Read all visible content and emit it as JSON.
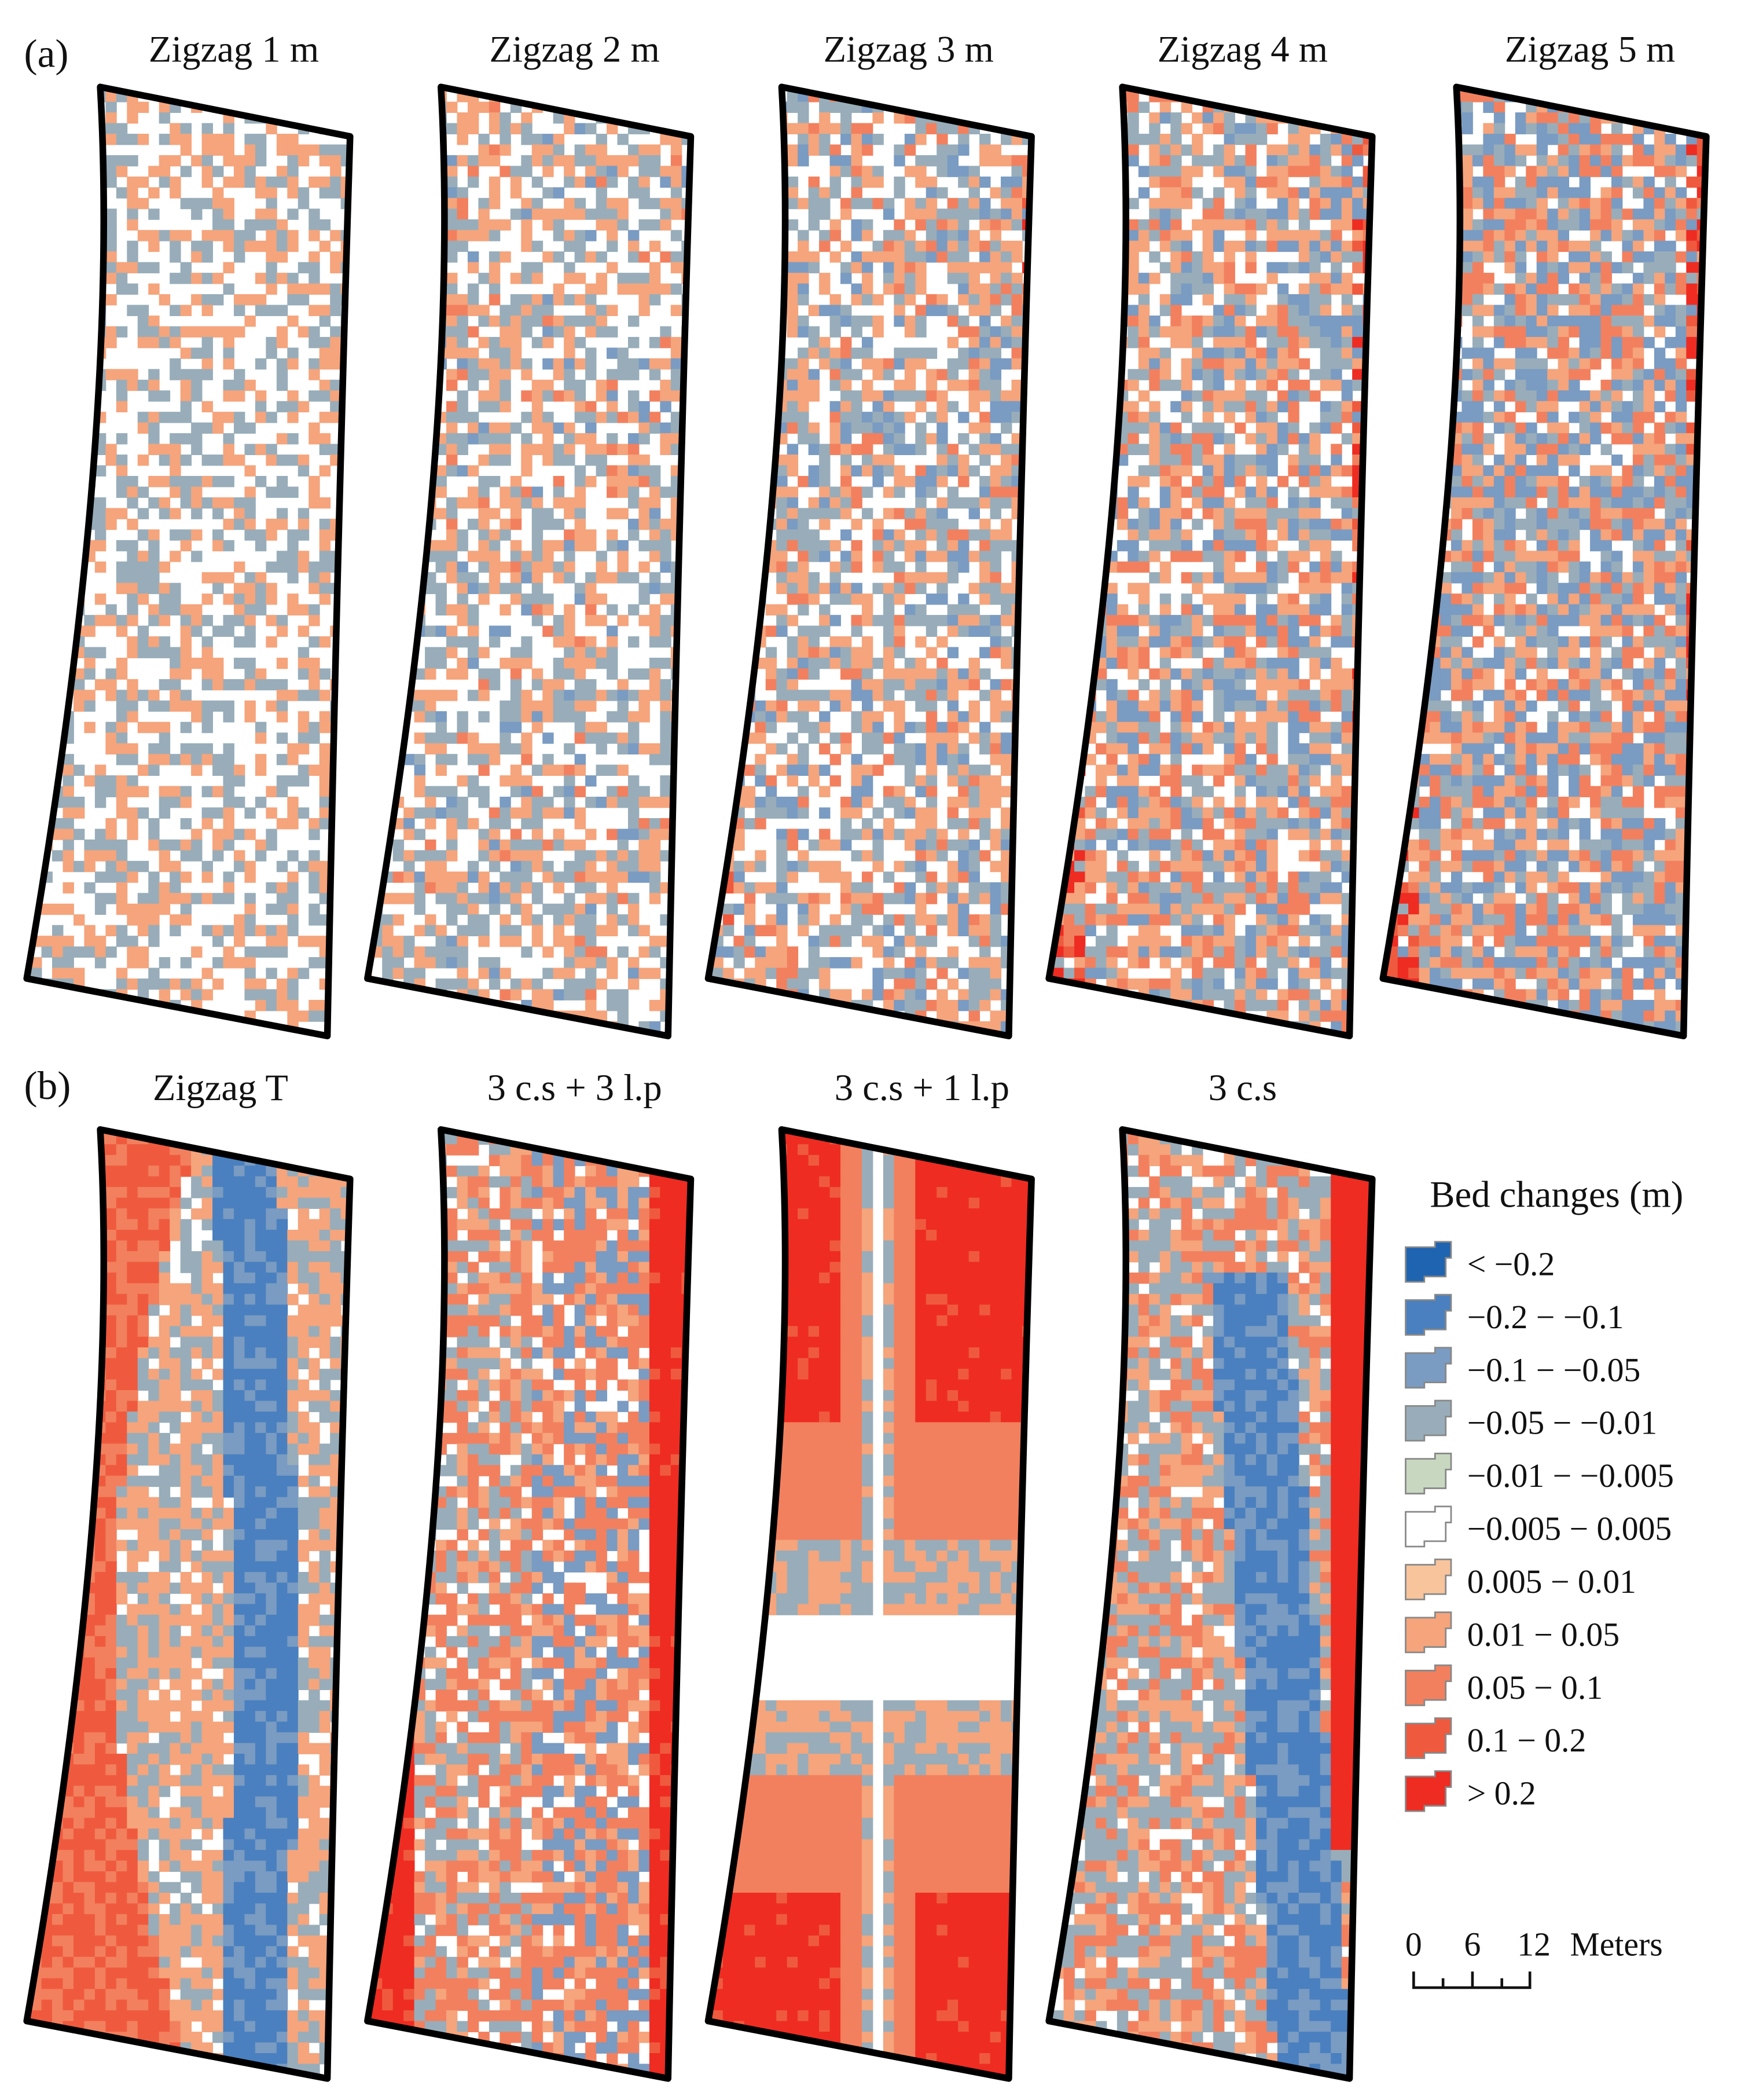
{
  "panels_a": {
    "label": "(a)",
    "titles": [
      "Zigzag 1 m",
      "Zigzag 2 m",
      "Zigzag 3 m",
      "Zigzag 4 m",
      "Zigzag 5 m"
    ]
  },
  "panels_b": {
    "label": "(b)",
    "titles": [
      "Zigzag T",
      "3 c.s + 3 l.p",
      "3 c.s + 1 l.p",
      "3 c.s"
    ]
  },
  "legend": {
    "title": "Bed changes (m)",
    "items": [
      {
        "label": "< −0.2",
        "color": "#1f64b0"
      },
      {
        "label": "−0.2 − −0.1",
        "color": "#4a80bf"
      },
      {
        "label": "−0.1 − −0.05",
        "color": "#7a9bc2"
      },
      {
        "label": "−0.05 − −0.01",
        "color": "#98adb9"
      },
      {
        "label": "−0.01 − −0.005",
        "color": "#c8d8c0"
      },
      {
        "label": "−0.005 − 0.005",
        "color": "#ffffff"
      },
      {
        "label": "0.005 − 0.01",
        "color": "#f8c49c"
      },
      {
        "label": "0.01 − 0.05",
        "color": "#f5a47c"
      },
      {
        "label": "0.05 − 0.1",
        "color": "#f2805e"
      },
      {
        "label": "0.1 − 0.2",
        "color": "#ef5a3e"
      },
      {
        "label": "> 0.2",
        "color": "#ee2c22"
      }
    ]
  },
  "scale_bar": {
    "labels": [
      "0",
      "6",
      "12"
    ],
    "unit": "Meters"
  }
}
